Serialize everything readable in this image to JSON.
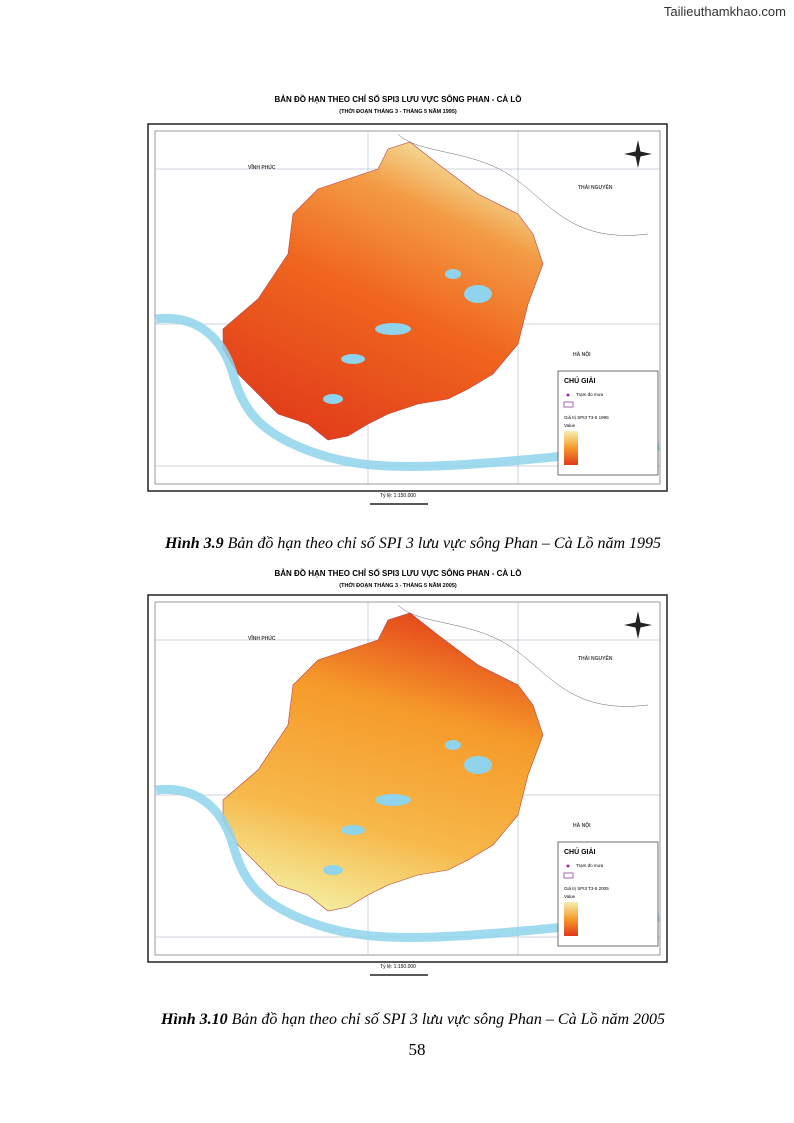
{
  "watermark": "Tailieuthamkhao.com",
  "figures": [
    {
      "title": "BẢN ĐỒ HẠN THEO CHỈ SỐ SPI3 LƯU VỰC SÔNG PHAN - CÀ LỒ",
      "subtitle": "(THỜI ĐOẠN THÁNG 3 - THÁNG 5 NĂM 1995)",
      "places": [
        "VĨNH PHÚC",
        "THÁI NGUYÊN",
        "HÀ NỘI"
      ],
      "legend": {
        "title": "CHÚ GIẢI",
        "station": "Trạm đo mưa",
        "heading": "Giá trị SPI3 T3-5 1995",
        "value_heading": "Value"
      },
      "scale": "Tỷ lệ: 1:150.000",
      "caption": {
        "label": "Hình 3.9",
        "text": " Bản đồ hạn theo chỉ số SPI 3 lưu vực sông Phan – Cà Lồ năm 1995"
      }
    },
    {
      "title": "BẢN ĐỒ HẠN THEO CHỈ SỐ SPI3 LƯU VỰC SÔNG PHAN - CÀ LỒ",
      "subtitle": "(THỜI ĐOẠN THÁNG 3 - THÁNG 5 NĂM 2005)",
      "places": [
        "VĨNH PHÚC",
        "THÁI NGUYÊN",
        "HÀ NỘI"
      ],
      "legend": {
        "title": "CHÚ GIẢI",
        "station": "Trạm đo mưa",
        "heading": "Giá trị SPI3 T3-5 2005",
        "value_heading": "Value"
      },
      "scale": "Tỷ lệ: 1:150.000",
      "caption": {
        "label": "Hình 3.10",
        "text": " Bản đồ hạn theo chỉ số SPI 3 lưu vực sông Phan – Cà Lồ năm 2005"
      }
    }
  ],
  "page_number": "58"
}
